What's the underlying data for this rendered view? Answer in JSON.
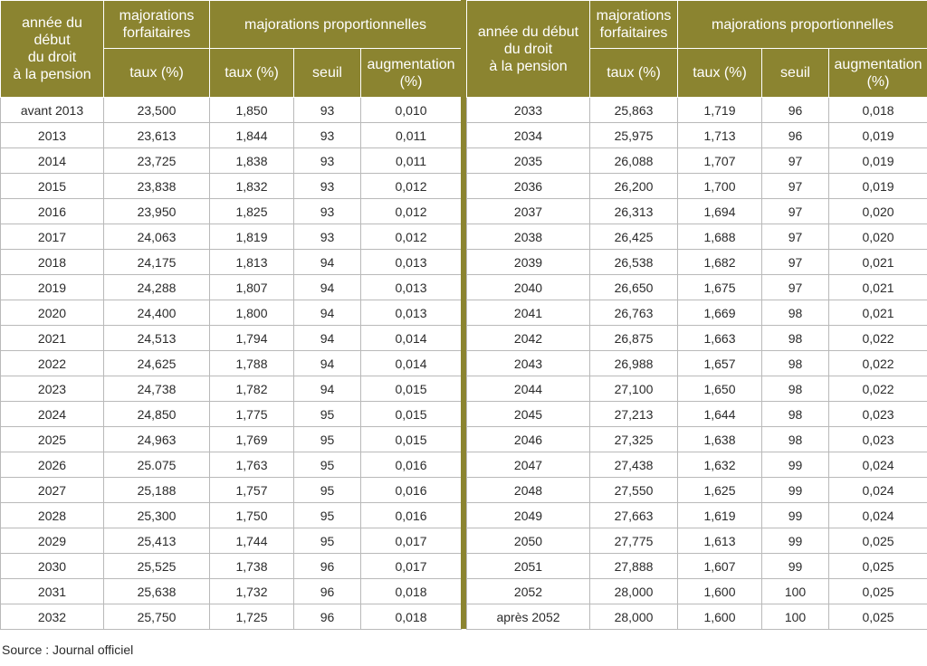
{
  "headers": {
    "year": [
      "année du début",
      "du droit",
      "à la pension"
    ],
    "forfaitaires": [
      "majorations",
      "forfaitaires"
    ],
    "proportionnelles": "majorations proportionnelles",
    "taux": "taux (%)",
    "seuil": "seuil",
    "augmentation": [
      "augmentation",
      "(%)"
    ]
  },
  "left_rows": [
    [
      "avant 2013",
      "23,500",
      "1,850",
      "93",
      "0,010"
    ],
    [
      "2013",
      "23,613",
      "1,844",
      "93",
      "0,011"
    ],
    [
      "2014",
      "23,725",
      "1,838",
      "93",
      "0,011"
    ],
    [
      "2015",
      "23,838",
      "1,832",
      "93",
      "0,012"
    ],
    [
      "2016",
      "23,950",
      "1,825",
      "93",
      "0,012"
    ],
    [
      "2017",
      "24,063",
      "1,819",
      "93",
      "0,012"
    ],
    [
      "2018",
      "24,175",
      "1,813",
      "94",
      "0,013"
    ],
    [
      "2019",
      "24,288",
      "1,807",
      "94",
      "0,013"
    ],
    [
      "2020",
      "24,400",
      "1,800",
      "94",
      "0,013"
    ],
    [
      "2021",
      "24,513",
      "1,794",
      "94",
      "0,014"
    ],
    [
      "2022",
      "24,625",
      "1,788",
      "94",
      "0,014"
    ],
    [
      "2023",
      "24,738",
      "1,782",
      "94",
      "0,015"
    ],
    [
      "2024",
      "24,850",
      "1,775",
      "95",
      "0,015"
    ],
    [
      "2025",
      "24,963",
      "1,769",
      "95",
      "0,015"
    ],
    [
      "2026",
      "25.075",
      "1,763",
      "95",
      "0,016"
    ],
    [
      "2027",
      "25,188",
      "1,757",
      "95",
      "0,016"
    ],
    [
      "2028",
      "25,300",
      "1,750",
      "95",
      "0,016"
    ],
    [
      "2029",
      "25,413",
      "1,744",
      "95",
      "0,017"
    ],
    [
      "2030",
      "25,525",
      "1,738",
      "96",
      "0,017"
    ],
    [
      "2031",
      "25,638",
      "1,732",
      "96",
      "0,018"
    ],
    [
      "2032",
      "25,750",
      "1,725",
      "96",
      "0,018"
    ]
  ],
  "right_rows": [
    [
      "2033",
      "25,863",
      "1,719",
      "96",
      "0,018"
    ],
    [
      "2034",
      "25,975",
      "1,713",
      "96",
      "0,019"
    ],
    [
      "2035",
      "26,088",
      "1,707",
      "97",
      "0,019"
    ],
    [
      "2036",
      "26,200",
      "1,700",
      "97",
      "0,019"
    ],
    [
      "2037",
      "26,313",
      "1,694",
      "97",
      "0,020"
    ],
    [
      "2038",
      "26,425",
      "1,688",
      "97",
      "0,020"
    ],
    [
      "2039",
      "26,538",
      "1,682",
      "97",
      "0,021"
    ],
    [
      "2040",
      "26,650",
      "1,675",
      "97",
      "0,021"
    ],
    [
      "2041",
      "26,763",
      "1,669",
      "98",
      "0,021"
    ],
    [
      "2042",
      "26,875",
      "1,663",
      "98",
      "0,022"
    ],
    [
      "2043",
      "26,988",
      "1,657",
      "98",
      "0,022"
    ],
    [
      "2044",
      "27,100",
      "1,650",
      "98",
      "0,022"
    ],
    [
      "2045",
      "27,213",
      "1,644",
      "98",
      "0,023"
    ],
    [
      "2046",
      "27,325",
      "1,638",
      "98",
      "0,023"
    ],
    [
      "2047",
      "27,438",
      "1,632",
      "99",
      "0,024"
    ],
    [
      "2048",
      "27,550",
      "1,625",
      "99",
      "0,024"
    ],
    [
      "2049",
      "27,663",
      "1,619",
      "99",
      "0,024"
    ],
    [
      "2050",
      "27,775",
      "1,613",
      "99",
      "0,025"
    ],
    [
      "2051",
      "27,888",
      "1,607",
      "99",
      "0,025"
    ],
    [
      "2052",
      "28,000",
      "1,600",
      "100",
      "0,025"
    ],
    [
      "après 2052",
      "28,000",
      "1,600",
      "100",
      "0,025"
    ]
  ],
  "source": "Source : Journal officiel",
  "colors": {
    "header_bg": "#8b8430",
    "header_text": "#ffffff",
    "grid": "#b9b9b9"
  }
}
